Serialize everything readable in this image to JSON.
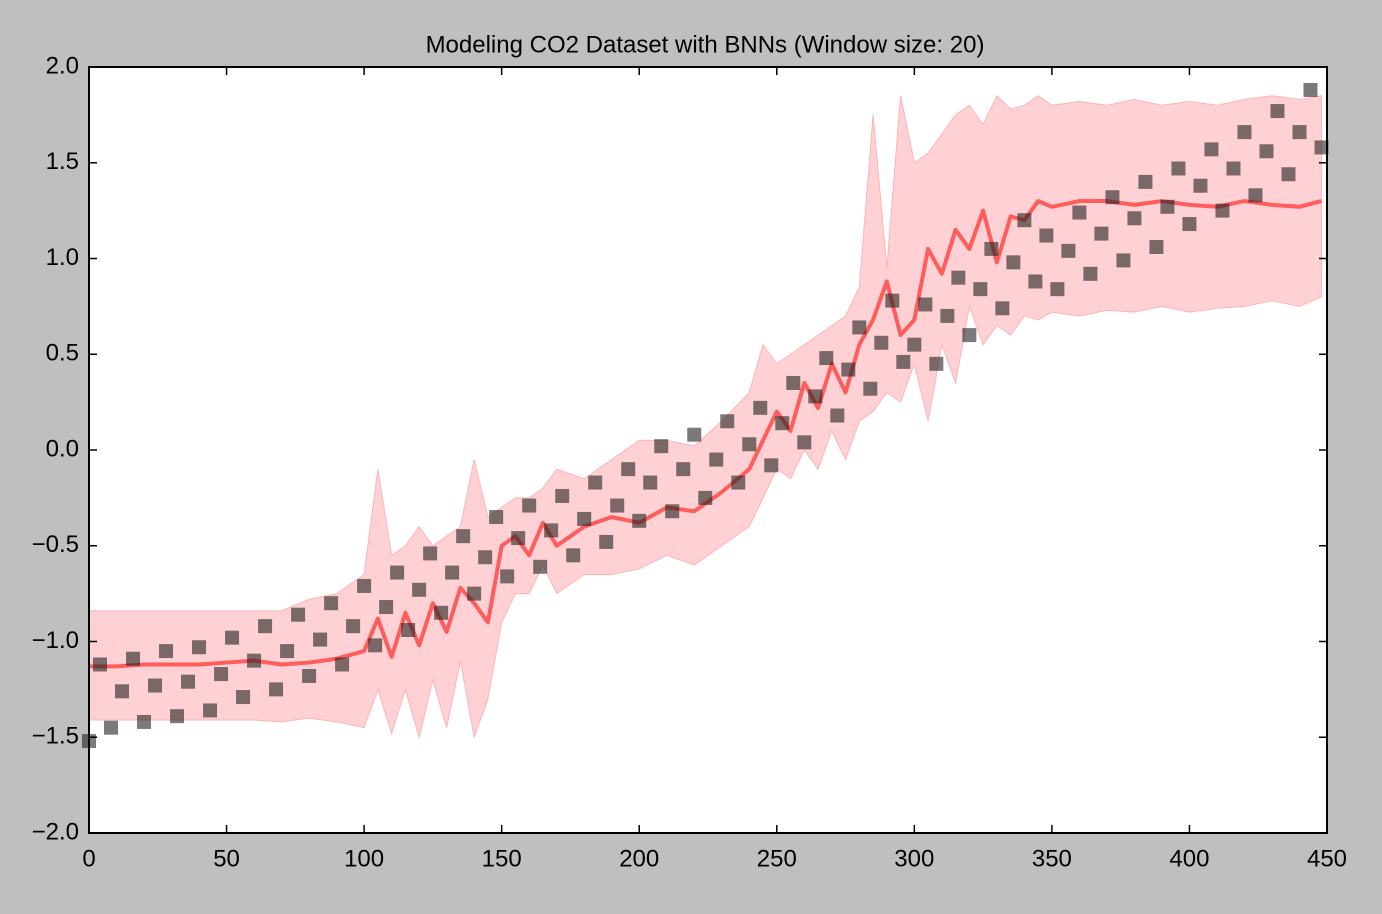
{
  "chart_data": {
    "type": "scatter",
    "title": "Modeling CO2 Dataset with BNNs (Window size: 20)",
    "xlim": [
      0,
      450
    ],
    "ylim": [
      -2.0,
      2.0
    ],
    "xticks": [
      0,
      50,
      100,
      150,
      200,
      250,
      300,
      350,
      400,
      450
    ],
    "yticks": [
      {
        "value": -2.0,
        "label": "−2.0"
      },
      {
        "value": -1.5,
        "label": "−1.5"
      },
      {
        "value": -1.0,
        "label": "−1.0"
      },
      {
        "value": -0.5,
        "label": "−0.5"
      },
      {
        "value": 0.0,
        "label": "0.0"
      },
      {
        "value": 0.5,
        "label": "0.5"
      },
      {
        "value": 1.0,
        "label": "1.0"
      },
      {
        "value": 1.5,
        "label": "1.5"
      },
      {
        "value": 2.0,
        "label": "2.0"
      }
    ],
    "points": {
      "color": "#222222",
      "x": [
        0,
        4,
        8,
        12,
        16,
        20,
        24,
        28,
        32,
        36,
        40,
        44,
        48,
        52,
        56,
        60,
        64,
        68,
        72,
        76,
        80,
        84,
        88,
        92,
        96,
        100,
        104,
        108,
        112,
        116,
        120,
        124,
        128,
        132,
        136,
        140,
        144,
        148,
        152,
        156,
        160,
        164,
        168,
        172,
        176,
        180,
        184,
        188,
        192,
        196,
        200,
        204,
        208,
        212,
        216,
        220,
        224,
        228,
        232,
        236,
        240,
        244,
        248,
        252,
        256,
        260,
        264,
        268,
        272,
        276,
        280,
        284,
        288,
        292,
        296,
        300,
        304,
        308,
        312,
        316,
        320,
        324,
        328,
        332,
        336,
        340,
        344,
        348,
        352,
        356,
        360,
        364,
        368,
        372,
        376,
        380,
        384,
        388,
        392,
        396,
        400,
        404,
        408,
        412,
        416,
        420,
        424,
        428,
        432,
        436,
        440,
        444,
        448
      ],
      "values": [
        -1.52,
        -1.12,
        -1.45,
        -1.26,
        -1.09,
        -1.42,
        -1.23,
        -1.05,
        -1.39,
        -1.21,
        -1.03,
        -1.36,
        -1.17,
        -0.98,
        -1.29,
        -1.1,
        -0.92,
        -1.25,
        -1.05,
        -0.86,
        -1.18,
        -0.99,
        -0.8,
        -1.12,
        -0.92,
        -0.71,
        -1.02,
        -0.82,
        -0.64,
        -0.94,
        -0.73,
        -0.54,
        -0.85,
        -0.64,
        -0.45,
        -0.75,
        -0.56,
        -0.35,
        -0.66,
        -0.46,
        -0.29,
        -0.61,
        -0.42,
        -0.24,
        -0.55,
        -0.36,
        -0.17,
        -0.48,
        -0.29,
        -0.1,
        -0.37,
        -0.17,
        0.02,
        -0.32,
        -0.1,
        0.08,
        -0.25,
        -0.05,
        0.15,
        -0.17,
        0.03,
        0.22,
        -0.08,
        0.14,
        0.35,
        0.04,
        0.28,
        0.48,
        0.18,
        0.42,
        0.64,
        0.32,
        0.56,
        0.78,
        0.46,
        0.55,
        0.76,
        0.45,
        0.7,
        0.9,
        0.6,
        0.84,
        1.05,
        0.74,
        0.98,
        1.2,
        0.88,
        1.12,
        0.84,
        1.04,
        1.24,
        0.92,
        1.13,
        1.32,
        0.99,
        1.21,
        1.4,
        1.06,
        1.27,
        1.47,
        1.18,
        1.38,
        1.57,
        1.25,
        1.47,
        1.66,
        1.33,
        1.56,
        1.77,
        1.44,
        1.66,
        1.88,
        1.58
      ]
    },
    "mean": {
      "color": "#ff5c5c",
      "x": [
        0,
        10,
        20,
        30,
        40,
        50,
        60,
        70,
        80,
        90,
        100,
        105,
        110,
        115,
        120,
        125,
        130,
        135,
        140,
        145,
        150,
        155,
        160,
        165,
        170,
        180,
        190,
        200,
        210,
        220,
        230,
        240,
        245,
        250,
        255,
        260,
        265,
        270,
        275,
        280,
        285,
        290,
        295,
        300,
        305,
        310,
        315,
        320,
        325,
        330,
        335,
        340,
        345,
        350,
        360,
        370,
        380,
        390,
        400,
        410,
        420,
        430,
        440,
        448
      ],
      "values": [
        -1.13,
        -1.13,
        -1.12,
        -1.12,
        -1.12,
        -1.11,
        -1.1,
        -1.12,
        -1.11,
        -1.09,
        -1.05,
        -0.88,
        -1.08,
        -0.85,
        -1.02,
        -0.8,
        -0.95,
        -0.72,
        -0.8,
        -0.9,
        -0.5,
        -0.45,
        -0.55,
        -0.38,
        -0.5,
        -0.4,
        -0.35,
        -0.38,
        -0.3,
        -0.32,
        -0.22,
        -0.1,
        0.05,
        0.2,
        0.1,
        0.35,
        0.22,
        0.45,
        0.3,
        0.55,
        0.68,
        0.88,
        0.6,
        0.68,
        1.05,
        0.92,
        1.15,
        1.05,
        1.25,
        0.98,
        1.22,
        1.2,
        1.3,
        1.27,
        1.3,
        1.3,
        1.28,
        1.3,
        1.28,
        1.27,
        1.3,
        1.28,
        1.27,
        1.3
      ]
    },
    "band": {
      "color": "#ffb3b8",
      "upper": [
        -0.84,
        -0.84,
        -0.84,
        -0.84,
        -0.84,
        -0.84,
        -0.84,
        -0.84,
        -0.78,
        -0.75,
        -0.65,
        -0.1,
        -0.55,
        -0.5,
        -0.4,
        -0.5,
        -0.45,
        -0.4,
        -0.05,
        -0.35,
        -0.3,
        -0.25,
        -0.25,
        -0.2,
        -0.1,
        -0.15,
        -0.05,
        0.05,
        0.05,
        0.02,
        0.15,
        0.3,
        0.55,
        0.45,
        0.5,
        0.55,
        0.6,
        0.65,
        0.7,
        0.85,
        1.75,
        0.95,
        1.85,
        1.5,
        1.55,
        1.65,
        1.75,
        1.8,
        1.7,
        1.85,
        1.78,
        1.8,
        1.85,
        1.8,
        1.82,
        1.8,
        1.83,
        1.8,
        1.82,
        1.8,
        1.83,
        1.85,
        1.83,
        1.85
      ],
      "lower": [
        -1.41,
        -1.41,
        -1.41,
        -1.41,
        -1.41,
        -1.41,
        -1.41,
        -1.42,
        -1.4,
        -1.42,
        -1.45,
        -1.25,
        -1.48,
        -1.25,
        -1.5,
        -1.2,
        -1.45,
        -1.1,
        -1.5,
        -1.3,
        -0.9,
        -0.75,
        -0.75,
        -0.6,
        -0.75,
        -0.65,
        -0.65,
        -0.62,
        -0.55,
        -0.6,
        -0.5,
        -0.4,
        -0.25,
        -0.1,
        -0.15,
        0.0,
        -0.1,
        0.1,
        -0.05,
        0.15,
        0.2,
        0.3,
        0.25,
        0.45,
        0.15,
        0.55,
        0.35,
        0.75,
        0.55,
        0.65,
        0.6,
        0.7,
        0.68,
        0.72,
        0.7,
        0.73,
        0.72,
        0.75,
        0.72,
        0.74,
        0.75,
        0.78,
        0.75,
        0.8
      ]
    }
  }
}
